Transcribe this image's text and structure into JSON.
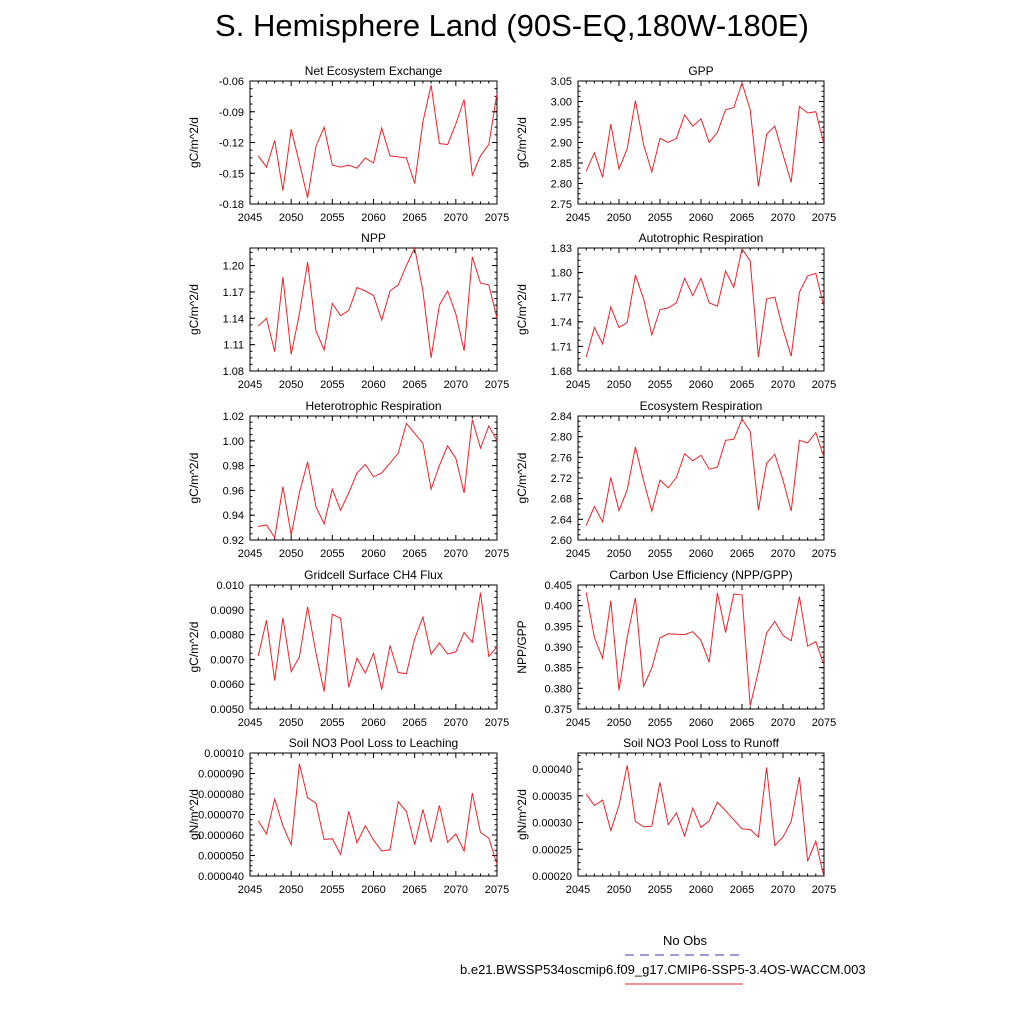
{
  "figure": {
    "title": "S. Hemisphere Land (90S-EQ,180W-180E)"
  },
  "legend": {
    "obs_label": "No Obs",
    "obs_color": "#3b3bb8",
    "case_label": "b.e21.BWSSP534oscmip6.f09_g17.CMIP6-SSP5-3.4OS-WACCM.003",
    "case_color": "#e8252b"
  },
  "chart_data": [
    {
      "type": "line",
      "title": "Net Ecosystem Exchange",
      "ylabel": "gC/m^2/d",
      "xlim": [
        2045,
        2075
      ],
      "ylim": [
        -0.18,
        -0.06
      ],
      "xticks": [
        2045,
        2050,
        2055,
        2060,
        2065,
        2070,
        2075
      ],
      "yticks": [
        "-0.18",
        "-0.15",
        "-0.12",
        "-0.09",
        "-0.06"
      ],
      "x": [
        2046,
        2047,
        2048,
        2049,
        2050,
        2051,
        2052,
        2053,
        2054,
        2055,
        2056,
        2057,
        2058,
        2059,
        2060,
        2061,
        2062,
        2063,
        2064,
        2065,
        2066,
        2067,
        2068,
        2069,
        2070,
        2071,
        2072,
        2073,
        2074,
        2075
      ],
      "series": [
        {
          "color": "#e8252b",
          "values": [
            -0.133,
            -0.144,
            -0.118,
            -0.167,
            -0.107,
            -0.14,
            -0.174,
            -0.124,
            -0.105,
            -0.142,
            -0.144,
            -0.142,
            -0.145,
            -0.135,
            -0.14,
            -0.106,
            -0.133,
            -0.134,
            -0.135,
            -0.16,
            -0.1,
            -0.064,
            -0.121,
            -0.122,
            -0.102,
            -0.078,
            -0.152,
            -0.133,
            -0.122,
            -0.072
          ]
        }
      ]
    },
    {
      "type": "line",
      "title": "GPP",
      "ylabel": "gC/m^2/d",
      "xlim": [
        2045,
        2075
      ],
      "ylim": [
        2.75,
        3.05
      ],
      "xticks": [
        2045,
        2050,
        2055,
        2060,
        2065,
        2070,
        2075
      ],
      "yticks": [
        "2.75",
        "2.80",
        "2.85",
        "2.90",
        "2.95",
        "3.00",
        "3.05"
      ],
      "x": [
        2046,
        2047,
        2048,
        2049,
        2050,
        2051,
        2052,
        2053,
        2054,
        2055,
        2056,
        2057,
        2058,
        2059,
        2060,
        2061,
        2062,
        2063,
        2064,
        2065,
        2066,
        2067,
        2068,
        2069,
        2070,
        2071,
        2072,
        2073,
        2074,
        2075
      ],
      "series": [
        {
          "color": "#e8252b",
          "values": [
            2.83,
            2.875,
            2.815,
            2.945,
            2.835,
            2.885,
            3.002,
            2.895,
            2.828,
            2.91,
            2.9,
            2.91,
            2.967,
            2.94,
            2.958,
            2.9,
            2.925,
            2.98,
            2.985,
            3.045,
            2.98,
            2.793,
            2.92,
            2.94,
            2.87,
            2.803,
            2.988,
            2.972,
            2.975,
            2.895
          ]
        }
      ]
    },
    {
      "type": "line",
      "title": "NPP",
      "ylabel": "gC/m^2/d",
      "xlim": [
        2045,
        2075
      ],
      "ylim": [
        1.08,
        1.22
      ],
      "xticks": [
        2045,
        2050,
        2055,
        2060,
        2065,
        2070,
        2075
      ],
      "yticks": [
        "1.08",
        "1.11",
        "1.14",
        "1.17",
        "1.20"
      ],
      "x": [
        2046,
        2047,
        2048,
        2049,
        2050,
        2051,
        2052,
        2053,
        2054,
        2055,
        2056,
        2057,
        2058,
        2059,
        2060,
        2061,
        2062,
        2063,
        2064,
        2065,
        2066,
        2067,
        2068,
        2069,
        2070,
        2071,
        2072,
        2073,
        2074,
        2075
      ],
      "series": [
        {
          "color": "#e8252b",
          "values": [
            1.131,
            1.14,
            1.102,
            1.187,
            1.099,
            1.145,
            1.204,
            1.126,
            1.104,
            1.157,
            1.143,
            1.149,
            1.175,
            1.171,
            1.166,
            1.138,
            1.171,
            1.178,
            1.2,
            1.22,
            1.171,
            1.095,
            1.155,
            1.171,
            1.145,
            1.103,
            1.21,
            1.18,
            1.178,
            1.14
          ]
        }
      ]
    },
    {
      "type": "line",
      "title": "Autotrophic Respiration",
      "ylabel": "gC/m^2/d",
      "xlim": [
        2045,
        2075
      ],
      "ylim": [
        1.68,
        1.83
      ],
      "xticks": [
        2045,
        2050,
        2055,
        2060,
        2065,
        2070,
        2075
      ],
      "yticks": [
        "1.68",
        "1.71",
        "1.74",
        "1.77",
        "1.80",
        "1.83"
      ],
      "x": [
        2046,
        2047,
        2048,
        2049,
        2050,
        2051,
        2052,
        2053,
        2054,
        2055,
        2056,
        2057,
        2058,
        2059,
        2060,
        2061,
        2062,
        2063,
        2064,
        2065,
        2066,
        2067,
        2068,
        2069,
        2070,
        2071,
        2072,
        2073,
        2074,
        2075
      ],
      "series": [
        {
          "color": "#e8252b",
          "values": [
            1.697,
            1.733,
            1.713,
            1.758,
            1.733,
            1.739,
            1.797,
            1.768,
            1.724,
            1.755,
            1.757,
            1.763,
            1.793,
            1.772,
            1.793,
            1.763,
            1.759,
            1.802,
            1.782,
            1.829,
            1.814,
            1.697,
            1.768,
            1.77,
            1.731,
            1.698,
            1.776,
            1.796,
            1.799,
            1.758
          ]
        }
      ]
    },
    {
      "type": "line",
      "title": "Heterotrophic Respiration",
      "ylabel": "gC/m^2/d",
      "xlim": [
        2045,
        2075
      ],
      "ylim": [
        0.92,
        1.02
      ],
      "xticks": [
        2045,
        2050,
        2055,
        2060,
        2065,
        2070,
        2075
      ],
      "yticks": [
        "0.92",
        "0.94",
        "0.96",
        "0.98",
        "1.00",
        "1.02"
      ],
      "x": [
        2046,
        2047,
        2048,
        2049,
        2050,
        2051,
        2052,
        2053,
        2054,
        2055,
        2056,
        2057,
        2058,
        2059,
        2060,
        2061,
        2062,
        2063,
        2064,
        2065,
        2066,
        2067,
        2068,
        2069,
        2070,
        2071,
        2072,
        2073,
        2074,
        2075
      ],
      "series": [
        {
          "color": "#e8252b",
          "values": [
            0.931,
            0.932,
            0.922,
            0.963,
            0.924,
            0.958,
            0.983,
            0.947,
            0.933,
            0.961,
            0.944,
            0.958,
            0.974,
            0.981,
            0.971,
            0.974,
            0.982,
            0.99,
            1.014,
            1.006,
            0.998,
            0.961,
            0.98,
            0.996,
            0.986,
            0.958,
            1.017,
            0.994,
            1.012,
            1.0
          ]
        }
      ]
    },
    {
      "type": "line",
      "title": "Ecosystem Respiration",
      "ylabel": "gC/m^2/d",
      "xlim": [
        2045,
        2075
      ],
      "ylim": [
        2.6,
        2.84
      ],
      "xticks": [
        2045,
        2050,
        2055,
        2060,
        2065,
        2070,
        2075
      ],
      "yticks": [
        "2.60",
        "2.64",
        "2.68",
        "2.72",
        "2.76",
        "2.80",
        "2.84"
      ],
      "x": [
        2046,
        2047,
        2048,
        2049,
        2050,
        2051,
        2052,
        2053,
        2054,
        2055,
        2056,
        2057,
        2058,
        2059,
        2060,
        2061,
        2062,
        2063,
        2064,
        2065,
        2066,
        2067,
        2068,
        2069,
        2070,
        2071,
        2072,
        2073,
        2074,
        2075
      ],
      "series": [
        {
          "color": "#e8252b",
          "values": [
            2.628,
            2.665,
            2.635,
            2.721,
            2.657,
            2.697,
            2.78,
            2.715,
            2.656,
            2.716,
            2.701,
            2.721,
            2.767,
            2.753,
            2.764,
            2.737,
            2.741,
            2.793,
            2.795,
            2.834,
            2.81,
            2.658,
            2.748,
            2.766,
            2.716,
            2.656,
            2.793,
            2.788,
            2.808,
            2.76
          ]
        }
      ]
    },
    {
      "type": "line",
      "title": "Gridcell Surface CH4 Flux",
      "ylabel": "gC/m^2/d",
      "xlim": [
        2045,
        2075
      ],
      "ylim": [
        0.005,
        0.01
      ],
      "xticks": [
        2045,
        2050,
        2055,
        2060,
        2065,
        2070,
        2075
      ],
      "yticks": [
        "0.0050",
        "0.0060",
        "0.0070",
        "0.0080",
        "0.0090",
        "0.010"
      ],
      "x": [
        2046,
        2047,
        2048,
        2049,
        2050,
        2051,
        2052,
        2053,
        2054,
        2055,
        2056,
        2057,
        2058,
        2059,
        2060,
        2061,
        2062,
        2063,
        2064,
        2065,
        2066,
        2067,
        2068,
        2069,
        2070,
        2071,
        2072,
        2073,
        2074,
        2075
      ],
      "series": [
        {
          "color": "#e8252b",
          "values": [
            0.00714,
            0.00858,
            0.00615,
            0.00868,
            0.00651,
            0.0071,
            0.00912,
            0.00727,
            0.0057,
            0.00882,
            0.00866,
            0.00587,
            0.00705,
            0.00645,
            0.00724,
            0.00578,
            0.00756,
            0.00647,
            0.00642,
            0.00783,
            0.00871,
            0.00721,
            0.00766,
            0.00722,
            0.0073,
            0.00808,
            0.00769,
            0.00969,
            0.00712,
            0.00751
          ]
        }
      ]
    },
    {
      "type": "line",
      "title": "Carbon Use Efficiency (NPP/GPP)",
      "ylabel": "NPP/GPP",
      "xlim": [
        2045,
        2075
      ],
      "ylim": [
        0.375,
        0.405
      ],
      "xticks": [
        2045,
        2050,
        2055,
        2060,
        2065,
        2070,
        2075
      ],
      "yticks": [
        "0.375",
        "0.380",
        "0.385",
        "0.390",
        "0.395",
        "0.400",
        "0.405"
      ],
      "x": [
        2046,
        2047,
        2048,
        2049,
        2050,
        2051,
        2052,
        2053,
        2054,
        2055,
        2056,
        2057,
        2058,
        2059,
        2060,
        2061,
        2062,
        2063,
        2064,
        2065,
        2066,
        2067,
        2068,
        2069,
        2070,
        2071,
        2072,
        2073,
        2074,
        2075
      ],
      "series": [
        {
          "color": "#e8252b",
          "values": [
            0.4032,
            0.3923,
            0.3873,
            0.4012,
            0.3795,
            0.3924,
            0.4019,
            0.3805,
            0.3849,
            0.3922,
            0.3932,
            0.3931,
            0.393,
            0.3937,
            0.3916,
            0.3863,
            0.4031,
            0.3935,
            0.4028,
            0.4026,
            0.3758,
            0.3841,
            0.3934,
            0.3962,
            0.3928,
            0.3915,
            0.4022,
            0.3902,
            0.3913,
            0.3856
          ]
        }
      ]
    },
    {
      "type": "line",
      "title": "Soil NO3 Pool Loss to Leaching",
      "ylabel": "gN/m^2/d",
      "xlim": [
        2045,
        2075
      ],
      "ylim": [
        4e-05,
        0.0001
      ],
      "xticks": [
        2045,
        2050,
        2055,
        2060,
        2065,
        2070,
        2075
      ],
      "yticks": [
        "0.000040",
        "0.000050",
        "0.000060",
        "0.000070",
        "0.000080",
        "0.000090",
        "0.00010"
      ],
      "x": [
        2046,
        2047,
        2048,
        2049,
        2050,
        2051,
        2052,
        2053,
        2054,
        2055,
        2056,
        2057,
        2058,
        2059,
        2060,
        2061,
        2062,
        2063,
        2064,
        2065,
        2066,
        2067,
        2068,
        2069,
        2070,
        2071,
        2072,
        2073,
        2074,
        2075
      ],
      "series": [
        {
          "color": "#e8252b",
          "values": [
            6.7e-05,
            6.05e-05,
            7.75e-05,
            6.45e-05,
            5.52e-05,
            9.48e-05,
            7.82e-05,
            7.55e-05,
            5.78e-05,
            5.82e-05,
            5.05e-05,
            7.15e-05,
            5.62e-05,
            6.45e-05,
            5.75e-05,
            5.22e-05,
            5.28e-05,
            7.62e-05,
            7.15e-05,
            5.52e-05,
            7.25e-05,
            5.65e-05,
            7.45e-05,
            5.65e-05,
            6.05e-05,
            5.22e-05,
            8.05e-05,
            6.12e-05,
            5.85e-05,
            4.58e-05
          ]
        }
      ]
    },
    {
      "type": "line",
      "title": "Soil NO3 Pool Loss to Runoff",
      "ylabel": "gN/m^2/d",
      "xlim": [
        2045,
        2075
      ],
      "ylim": [
        0.0002,
        0.00043
      ],
      "xticks": [
        2045,
        2050,
        2055,
        2060,
        2065,
        2070,
        2075
      ],
      "yticks": [
        "0.00020",
        "0.00025",
        "0.00030",
        "0.00035",
        "0.00040"
      ],
      "x": [
        2046,
        2047,
        2048,
        2049,
        2050,
        2051,
        2052,
        2053,
        2054,
        2055,
        2056,
        2057,
        2058,
        2059,
        2060,
        2061,
        2062,
        2063,
        2064,
        2065,
        2066,
        2067,
        2068,
        2069,
        2070,
        2071,
        2072,
        2073,
        2074,
        2075
      ],
      "series": [
        {
          "color": "#e8252b",
          "values": [
            0.000353,
            0.000332,
            0.000342,
            0.000285,
            0.000332,
            0.000407,
            0.000302,
            0.000292,
            0.000293,
            0.000375,
            0.000296,
            0.000318,
            0.000275,
            0.000327,
            0.000291,
            0.000303,
            0.000338,
            0.000322,
            0.000305,
            0.000288,
            0.000287,
            0.000273,
            0.000403,
            0.000257,
            0.000273,
            0.000302,
            0.000385,
            0.000228,
            0.000265,
            0.000198
          ]
        }
      ]
    }
  ]
}
